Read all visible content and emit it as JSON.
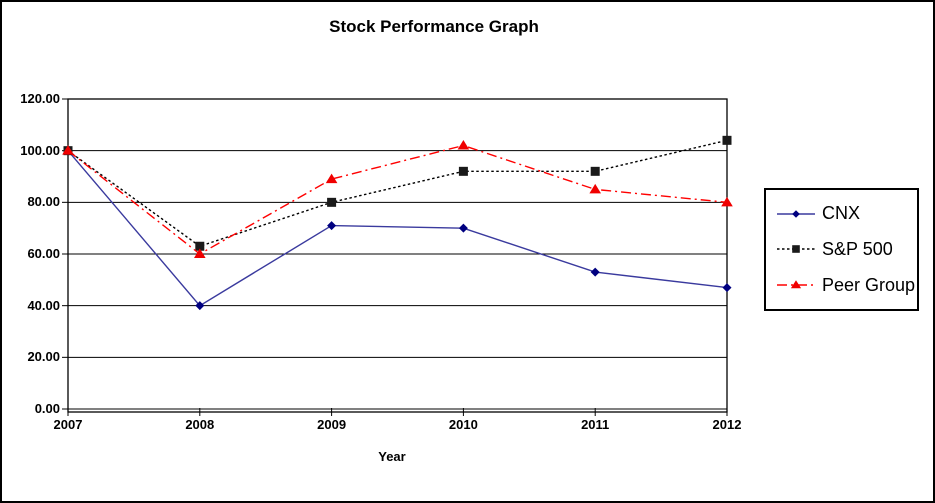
{
  "window": {
    "background": "#FFFFFF",
    "border_color": "#000000"
  },
  "chart_data": {
    "type": "line",
    "title": "Stock Performance Graph",
    "xlabel": "Year",
    "ylabel": "",
    "categories": [
      "2007",
      "2008",
      "2009",
      "2010",
      "2011",
      "2012"
    ],
    "series": [
      {
        "name": "CNX",
        "values": [
          100,
          40,
          71,
          70,
          53,
          47
        ],
        "line_color": "#3A3A9E",
        "marker_color": "#000080",
        "line_style": "solid",
        "marker": "diamond"
      },
      {
        "name": "S&P 500",
        "values": [
          100,
          63,
          80,
          92,
          92,
          104
        ],
        "line_color": "#000000",
        "marker_color": "#1A1A1A",
        "line_style": "dot",
        "marker": "square"
      },
      {
        "name": "Peer Group",
        "values": [
          100,
          60,
          89,
          102,
          85,
          80
        ],
        "line_color": "#FF0000",
        "marker_color": "#F00000",
        "line_style": "dash-dot",
        "marker": "triangle"
      }
    ],
    "ylim": [
      0,
      120
    ],
    "ytick_step": 20,
    "ytick_decimals": 2,
    "grid": "horizontal",
    "legend_position": "right",
    "axis_color": "#000000",
    "plot_background": "#FFFFFF"
  }
}
